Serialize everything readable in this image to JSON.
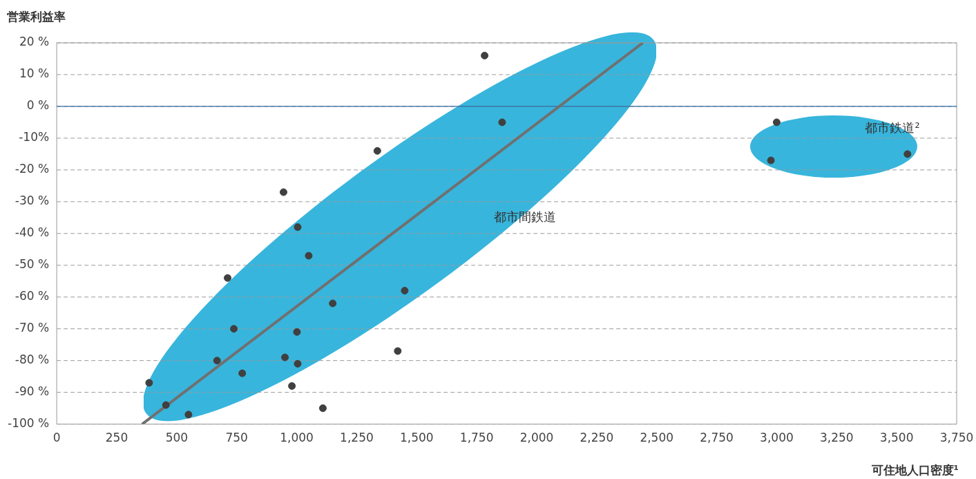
{
  "chart_data": {
    "type": "scatter",
    "xlabel": "可住地人口密度¹",
    "ylabel": "営業利益率",
    "xlim": [
      0,
      3750
    ],
    "ylim": [
      -100,
      20
    ],
    "xticks": [
      0,
      250,
      500,
      750,
      {
        "value": 1000,
        "label": "1,000"
      },
      {
        "value": 1250,
        "label": "1,250"
      },
      {
        "value": 1500,
        "label": "1,500"
      },
      {
        "value": 1750,
        "label": "1,750"
      },
      {
        "value": 2000,
        "label": "2,000"
      },
      {
        "value": 2250,
        "label": "2,250"
      },
      {
        "value": 2500,
        "label": "2,500"
      },
      {
        "value": 2750,
        "label": "2,750"
      },
      {
        "value": 3000,
        "label": "3,000"
      },
      {
        "value": 3250,
        "label": "3,250"
      },
      {
        "value": 3500,
        "label": "3,500"
      },
      {
        "value": 3750,
        "label": "3,750"
      }
    ],
    "yticks": [
      {
        "value": 20,
        "label": "20 %"
      },
      {
        "value": 10,
        "label": "10 %"
      },
      {
        "value": 0,
        "label": "0 %"
      },
      {
        "value": -10,
        "label": "-10%"
      },
      {
        "value": -20,
        "label": "-20 %"
      },
      {
        "value": -30,
        "label": "-30 %"
      },
      {
        "value": -40,
        "label": "-40 %"
      },
      {
        "value": -50,
        "label": "-50 %"
      },
      {
        "value": -60,
        "label": "-60 %"
      },
      {
        "value": -70,
        "label": "-70 %"
      },
      {
        "value": -80,
        "label": "-80 %"
      },
      {
        "value": -90,
        "label": "-90 %"
      },
      {
        "value": -100,
        "label": "-100 %"
      }
    ],
    "grid": "y",
    "ref_lines": [
      {
        "axis": "y",
        "value": 0,
        "color": "#2e6da4",
        "line_style": "solid"
      }
    ],
    "annotations": [
      "都市間鉄道",
      "都市鉄道²"
    ],
    "series": [
      {
        "marker": "circle",
        "color": "#404040",
        "x": [
          385,
          455,
          549,
          712,
          668,
          738,
          773,
          945,
          951,
          980,
          1004,
          1001,
          1004,
          1050,
          1109,
          1150,
          1336,
          1421,
          1450,
          1783,
          1856,
          2976,
          3000,
          3545
        ],
        "values": [
          -87,
          -94,
          -97,
          -54,
          -80,
          -70,
          -84,
          -27,
          -79,
          -88,
          -38,
          -71,
          -81,
          -47,
          -95,
          -62,
          -14,
          -77,
          -58,
          16,
          -5,
          -17,
          -5,
          -15
        ]
      },
      {
        "type": "line",
        "marker": "none",
        "color": "#707070",
        "x": [
          356,
          2442
        ],
        "values": [
          -100,
          20
        ]
      }
    ]
  }
}
